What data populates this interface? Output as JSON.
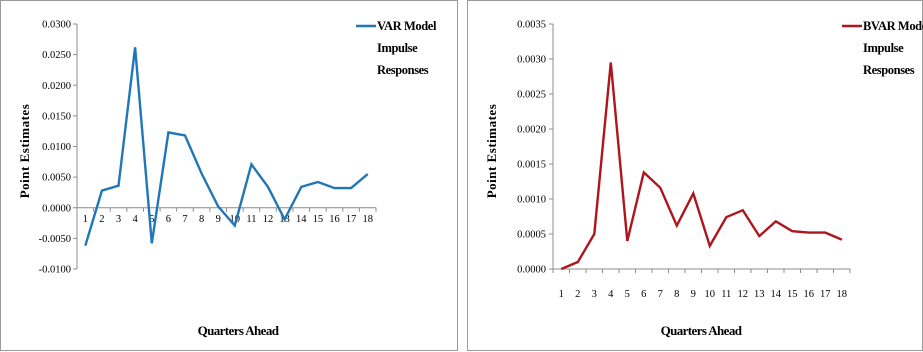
{
  "charts": [
    {
      "id": "var",
      "chart_data": {
        "type": "line",
        "categories": [
          "1",
          "2",
          "3",
          "4",
          "5",
          "6",
          "7",
          "8",
          "9",
          "10",
          "11",
          "12",
          "13",
          "14",
          "15",
          "16",
          "17",
          "18"
        ],
        "series": [
          {
            "name": "VAR Model Impulse Responses",
            "values": [
              -0.0062,
              0.0028,
              0.0036,
              0.0262,
              -0.0058,
              0.0123,
              0.0118,
              0.0056,
              0.0002,
              -0.0029,
              0.0071,
              0.0034,
              -0.0019,
              0.0034,
              0.0042,
              0.0032,
              0.0032,
              0.0055
            ]
          }
        ],
        "ylabel": "Point Estimates",
        "xlabel": "Quarters Ahead",
        "ylim": [
          -0.01,
          0.03
        ],
        "yticks": [
          "0.0300",
          "0.0250",
          "0.0200",
          "0.0150",
          "0.0100",
          "0.0050",
          "0.0000",
          "-0.0050",
          "-0.0100"
        ],
        "legend_lines": [
          "VAR Model",
          "Impulse",
          "Responses"
        ],
        "legend_position": "top-right",
        "color": "#1f77b9",
        "xtick_position": "on zero axis"
      }
    },
    {
      "id": "bvar",
      "chart_data": {
        "type": "line",
        "categories": [
          "1",
          "2",
          "3",
          "4",
          "5",
          "6",
          "7",
          "8",
          "9",
          "10",
          "11",
          "12",
          "13",
          "14",
          "15",
          "16",
          "17",
          "18"
        ],
        "series": [
          {
            "name": "BVAR Model Impulse Responses",
            "values": [
              0.0,
              0.0001,
              0.0005,
              0.00295,
              0.0004,
              0.00138,
              0.00116,
              0.00062,
              0.00108,
              0.00033,
              0.00074,
              0.00084,
              0.00047,
              0.00068,
              0.00054,
              0.00052,
              0.00052,
              0.00042
            ]
          }
        ],
        "ylabel": "Point Estimates",
        "xlabel": "Quarters Ahead",
        "ylim": [
          0,
          0.0035
        ],
        "yticks": [
          "0.0035",
          "0.0030",
          "0.0025",
          "0.0020",
          "0.0015",
          "0.0010",
          "0.0005",
          "0.0000"
        ],
        "legend_lines": [
          "BVAR Model",
          "Impulse",
          "Responses"
        ],
        "legend_position": "top-right",
        "color": "#b0141c",
        "xtick_position": "below axis"
      }
    }
  ]
}
